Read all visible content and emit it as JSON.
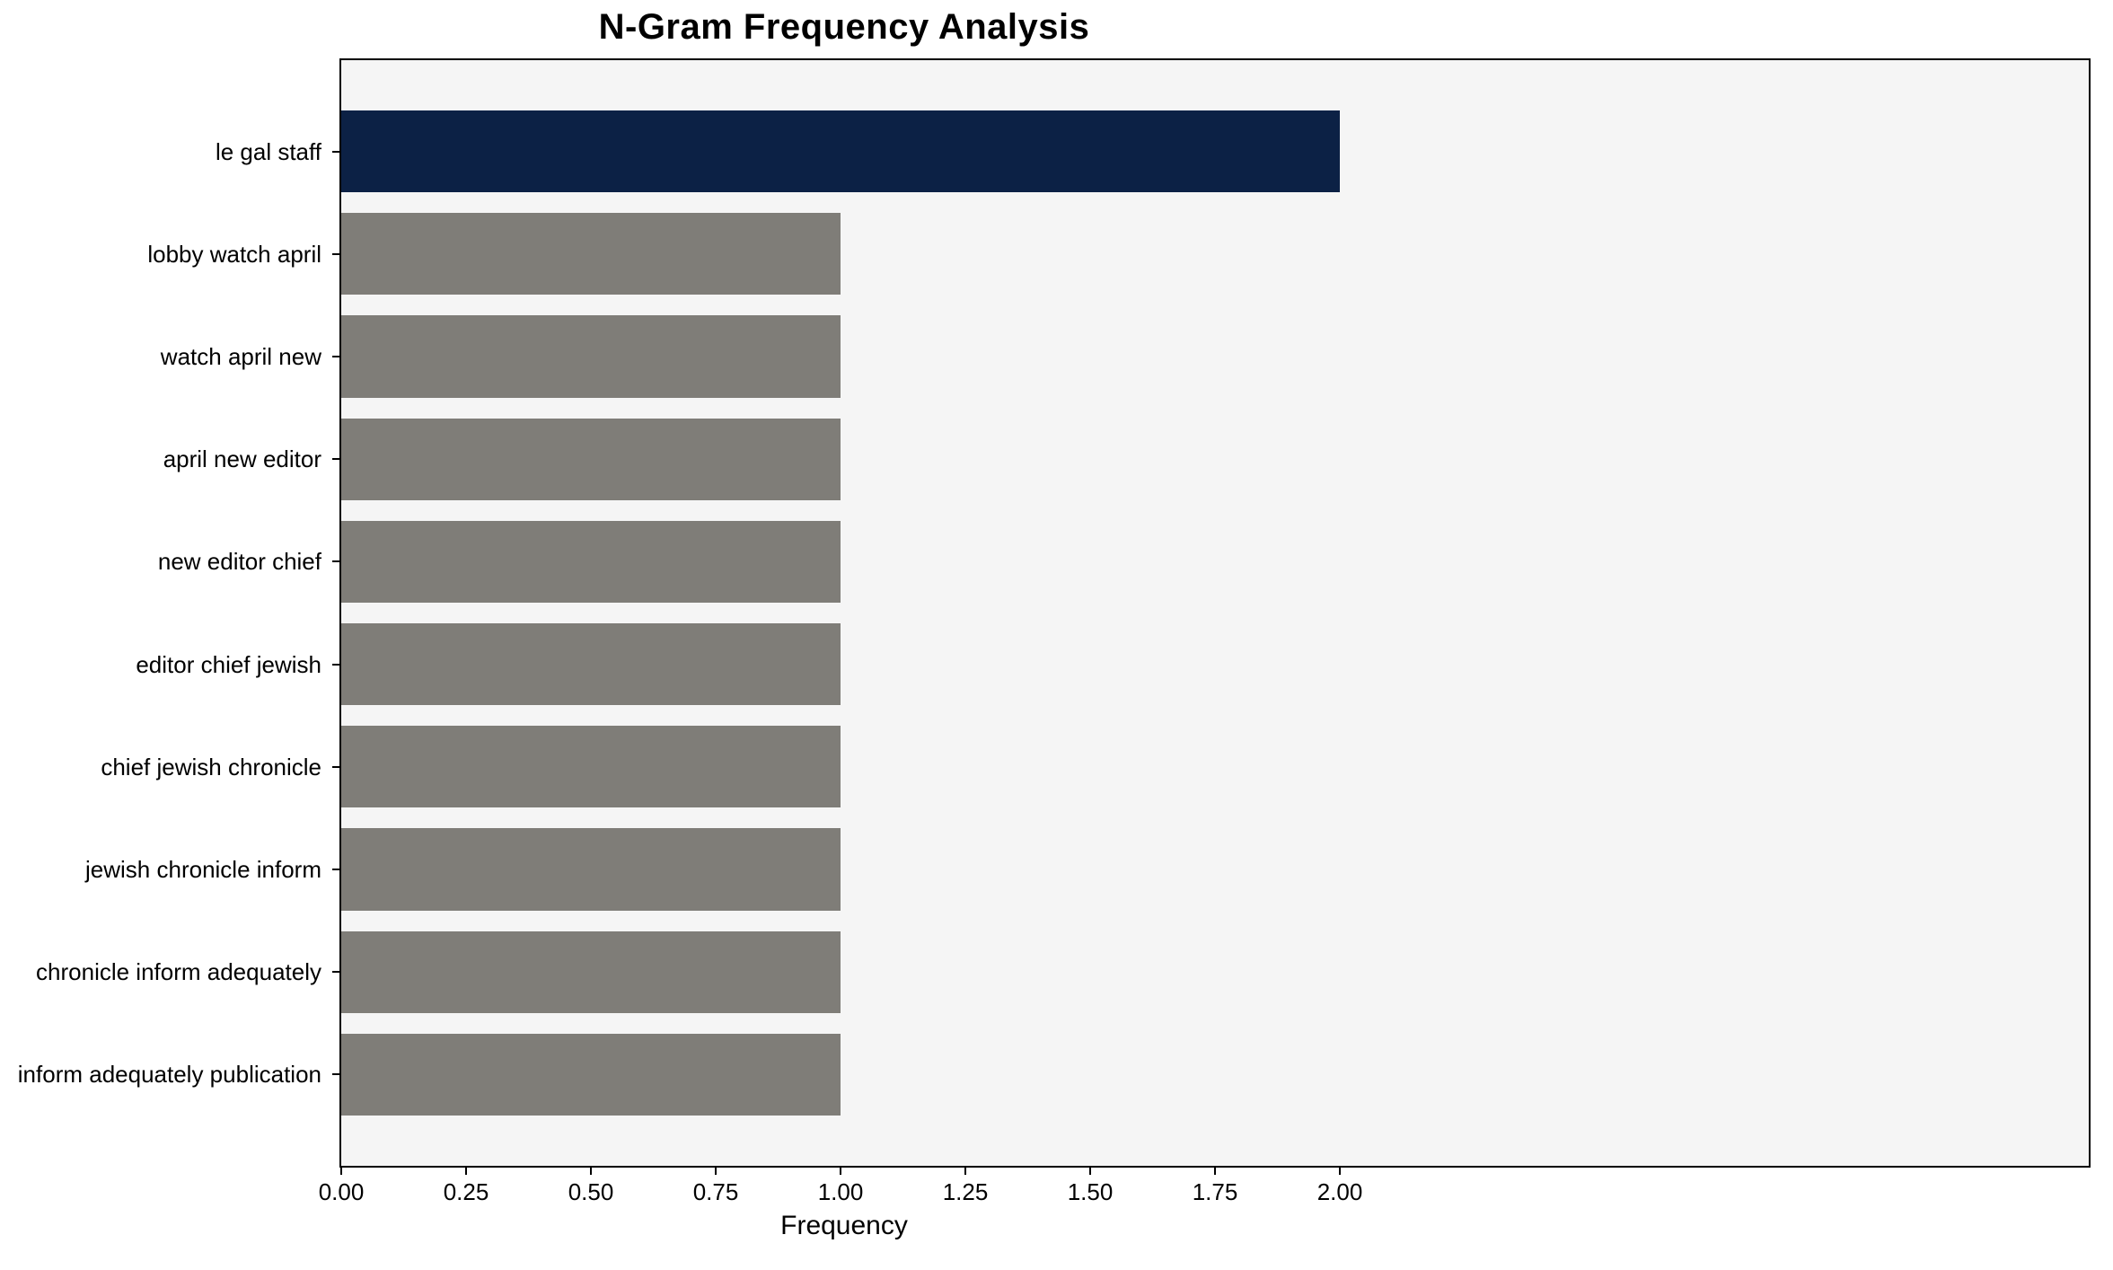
{
  "chart_data": {
    "type": "bar",
    "orientation": "horizontal",
    "title": "N-Gram Frequency Analysis",
    "xlabel": "Frequency",
    "ylabel": "",
    "categories": [
      "le gal staff",
      "lobby watch april",
      "watch april new",
      "april new editor",
      "new editor chief",
      "editor chief jewish",
      "chief jewish chronicle",
      "jewish chronicle inform",
      "chronicle inform adequately",
      "inform adequately publication"
    ],
    "values": [
      2,
      1,
      1,
      1,
      1,
      1,
      1,
      1,
      1,
      1
    ],
    "x_ticks": [
      "0.00",
      "0.25",
      "0.50",
      "0.75",
      "1.00",
      "1.25",
      "1.50",
      "1.75",
      "2.00"
    ],
    "x_tick_values": [
      0,
      0.25,
      0.5,
      0.75,
      1.0,
      1.25,
      1.5,
      1.75,
      2.0
    ],
    "xlim": [
      0,
      3.5
    ],
    "grid": false,
    "legend": false,
    "highlight_index": 0,
    "bar_colors": {
      "highlight": "#0c2145",
      "default": "#7f7d78"
    },
    "plot_bg": "#f5f5f5",
    "figure_bg": "#ffffff",
    "spine_color": "#000000"
  }
}
